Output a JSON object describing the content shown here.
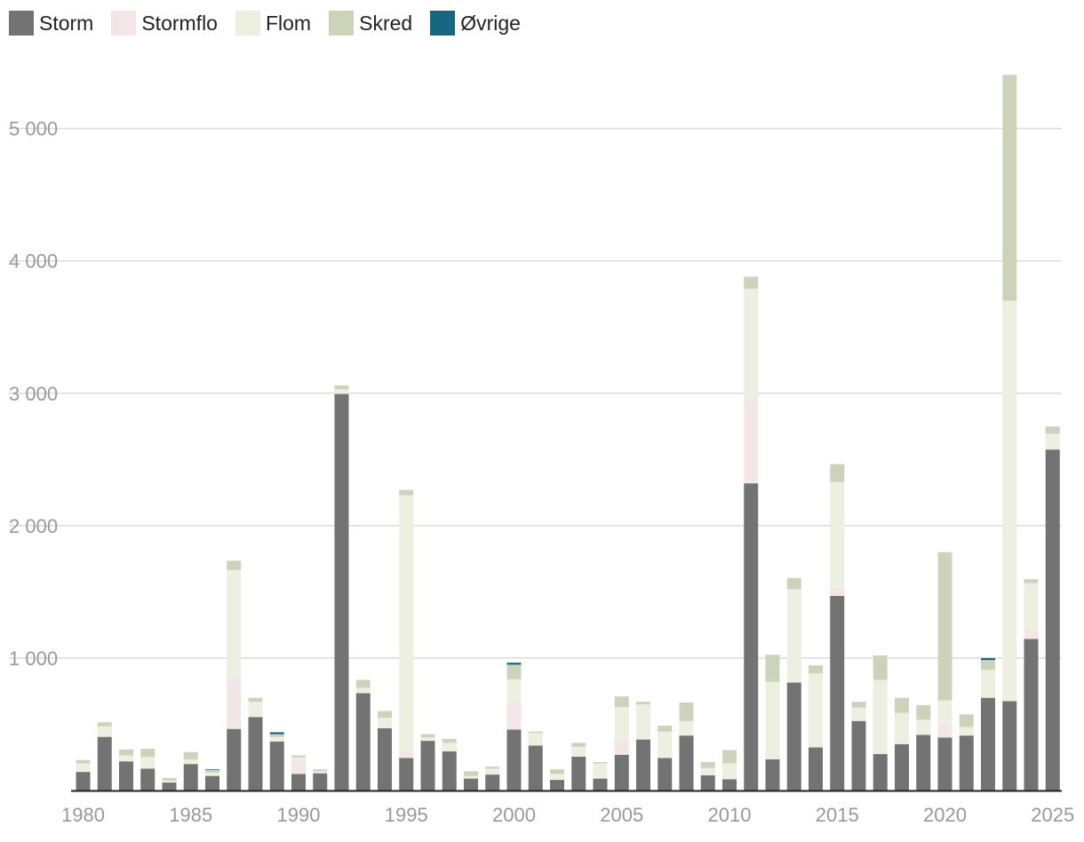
{
  "colors": {
    "storm": "#737373",
    "stormflo": "#f3e6e6",
    "flom": "#edefe1",
    "skred": "#cdd3bb",
    "ovrige": "#186780",
    "grid": "#dcdcdc",
    "axis": "#222222",
    "tick": "#999999"
  },
  "legend": [
    {
      "key": "storm",
      "label": "Storm"
    },
    {
      "key": "stormflo",
      "label": "Stormflo"
    },
    {
      "key": "flom",
      "label": "Flom"
    },
    {
      "key": "skred",
      "label": "Skred"
    },
    {
      "key": "ovrige",
      "label": "Øvrige"
    }
  ],
  "chart_data": {
    "type": "bar",
    "stacked": true,
    "x": [
      1980,
      1981,
      1982,
      1983,
      1984,
      1985,
      1986,
      1987,
      1988,
      1989,
      1990,
      1991,
      1992,
      1993,
      1994,
      1995,
      1996,
      1997,
      1998,
      1999,
      2000,
      2001,
      2002,
      2003,
      2004,
      2005,
      2006,
      2007,
      2008,
      2009,
      2010,
      2011,
      2012,
      2013,
      2014,
      2015,
      2016,
      2017,
      2018,
      2019,
      2020,
      2021,
      2022,
      2023,
      2024,
      2025
    ],
    "x_tick_labels": [
      "1980",
      "1985",
      "1990",
      "1995",
      "2000",
      "2005",
      "2010",
      "2015",
      "2020",
      "2025"
    ],
    "x_tick_values": [
      1980,
      1985,
      1990,
      1995,
      2000,
      2005,
      2010,
      2015,
      2020,
      2025
    ],
    "y_tick_labels": [
      "1 000",
      "2 000",
      "3 000",
      "4 000",
      "5 000"
    ],
    "y_tick_values": [
      1000,
      2000,
      3000,
      4000,
      5000
    ],
    "ylim": [
      0,
      5400
    ],
    "grid": true,
    "legend_position": "top-left",
    "series": [
      {
        "key": "storm",
        "name": "Storm",
        "values": [
          140,
          405,
          220,
          165,
          60,
          200,
          110,
          465,
          555,
          370,
          125,
          130,
          2995,
          735,
          470,
          245,
          375,
          295,
          90,
          120,
          460,
          340,
          80,
          255,
          90,
          270,
          385,
          245,
          415,
          115,
          85,
          2320,
          235,
          815,
          325,
          1470,
          525,
          275,
          350,
          420,
          400,
          415,
          700,
          675,
          1145,
          2575
        ]
      },
      {
        "key": "stormflo",
        "name": "Stormflo",
        "values": [
          0,
          0,
          0,
          0,
          0,
          0,
          0,
          390,
          0,
          0,
          110,
          0,
          0,
          0,
          0,
          55,
          0,
          0,
          0,
          0,
          200,
          0,
          0,
          0,
          0,
          110,
          0,
          0,
          0,
          0,
          0,
          640,
          0,
          0,
          0,
          60,
          0,
          0,
          0,
          0,
          110,
          0,
          0,
          0,
          80,
          0
        ]
      },
      {
        "key": "flom",
        "name": "Flom",
        "values": [
          65,
          80,
          45,
          90,
          15,
          35,
          25,
          810,
          115,
          35,
          15,
          15,
          35,
          40,
          80,
          1930,
          25,
          65,
          20,
          45,
          180,
          95,
          45,
          75,
          115,
          250,
          265,
          200,
          110,
          55,
          120,
          830,
          585,
          705,
          560,
          800,
          100,
          560,
          235,
          115,
          170,
          65,
          210,
          3025,
          340,
          120
        ]
      },
      {
        "key": "skred",
        "name": "Skred",
        "values": [
          25,
          30,
          45,
          60,
          20,
          55,
          20,
          70,
          30,
          20,
          15,
          15,
          30,
          60,
          50,
          40,
          25,
          30,
          35,
          15,
          110,
          10,
          35,
          30,
          10,
          80,
          20,
          45,
          140,
          45,
          100,
          90,
          205,
          85,
          60,
          135,
          45,
          185,
          115,
          110,
          1120,
          95,
          75,
          1705,
          30,
          55
        ]
      },
      {
        "key": "ovrige",
        "name": "Øvrige",
        "values": [
          0,
          0,
          0,
          0,
          0,
          0,
          5,
          0,
          0,
          15,
          0,
          0,
          0,
          0,
          0,
          0,
          0,
          0,
          0,
          0,
          15,
          0,
          0,
          0,
          0,
          0,
          0,
          0,
          0,
          0,
          0,
          0,
          0,
          0,
          0,
          0,
          0,
          0,
          0,
          0,
          0,
          0,
          15,
          0,
          0,
          0
        ]
      }
    ]
  }
}
